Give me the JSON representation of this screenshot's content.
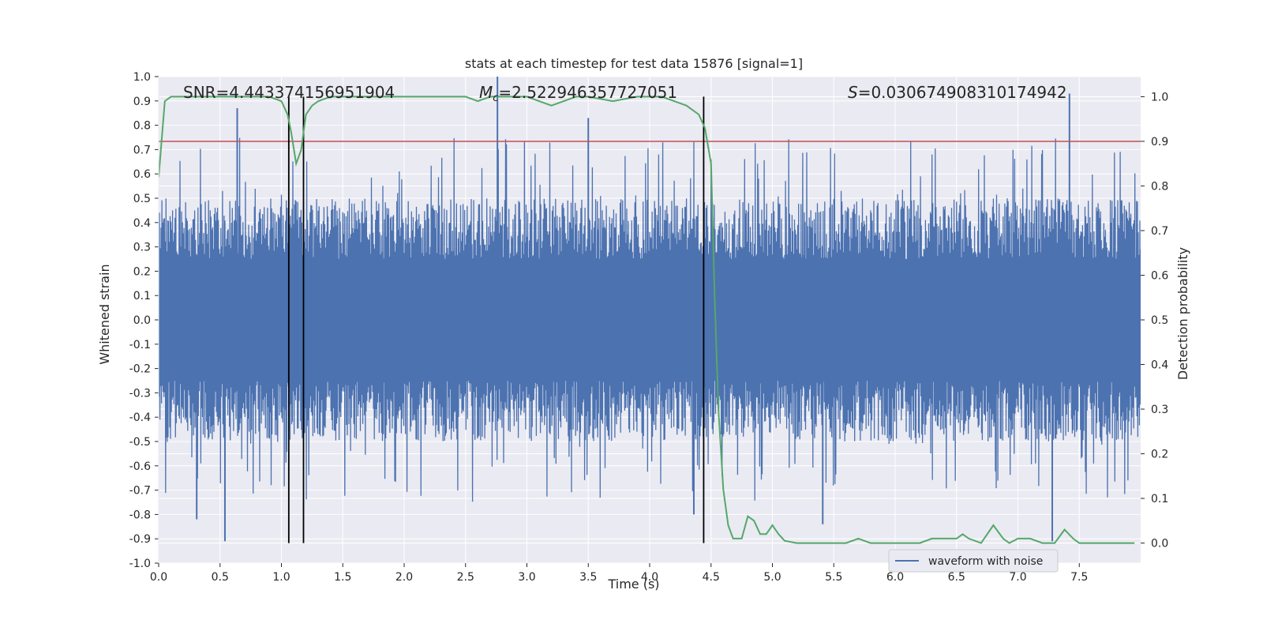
{
  "chart_data": {
    "type": "line",
    "title": "stats at each timestep for test data 15876 [signal=1]",
    "xlabel": "Time (s)",
    "ylabel": "Whitened strain",
    "ylabel_right": "Detection probability",
    "xlim": [
      0.0,
      8.0
    ],
    "ylim": [
      -1.0,
      1.0
    ],
    "ylim_right": [
      -0.045,
      1.045
    ],
    "x_ticks": [
      "0.0",
      "0.5",
      "1.0",
      "1.5",
      "2.0",
      "2.5",
      "3.0",
      "3.5",
      "4.0",
      "4.5",
      "5.0",
      "5.5",
      "6.0",
      "6.5",
      "7.0",
      "7.5"
    ],
    "y_ticks": [
      "1.0",
      "0.9",
      "0.8",
      "0.7",
      "0.6",
      "0.5",
      "0.4",
      "0.3",
      "0.2",
      "0.1",
      "0.0",
      "-0.1",
      "-0.2",
      "-0.3",
      "-0.4",
      "-0.5",
      "-0.6",
      "-0.7",
      "-0.8",
      "-0.9",
      "-1.0"
    ],
    "y_right_ticks": [
      "1.0",
      "0.9",
      "0.8",
      "0.7",
      "0.6",
      "0.5",
      "0.4",
      "0.3",
      "0.2",
      "0.1",
      "0.0"
    ],
    "grid": true,
    "annotations": {
      "snr": "SNR=4.443374156951904",
      "mc_symbol": "M",
      "mc_sub": "c",
      "mc_value": "=2.522946357727051",
      "s_symbol": "S",
      "s_value": "=0.030674908310174942"
    },
    "legend": {
      "placement": "lower-right",
      "entries": [
        "waveform with noise"
      ]
    },
    "colors": {
      "waveform": "#4c72b0",
      "probability": "#55a868",
      "threshold": "#c44e52",
      "vlines": "#000000",
      "background": "#eaeaf2",
      "grid": "#ffffff"
    },
    "threshold_probability": 0.9,
    "vertical_lines_x": [
      1.06,
      1.18,
      4.44
    ],
    "series": [
      {
        "name": "waveform with noise",
        "note_values": "dense whitened strain trace; envelope approx ±0.3–0.6 with spikes up to ±1.0",
        "spikes": [
          {
            "x": 0.64,
            "y": 0.87
          },
          {
            "x": 0.54,
            "y": -0.91
          },
          {
            "x": 2.76,
            "y": 1.0
          },
          {
            "x": 3.5,
            "y": 0.83
          },
          {
            "x": 7.42,
            "y": 0.93
          },
          {
            "x": 7.28,
            "y": -0.91
          },
          {
            "x": 5.41,
            "y": -0.84
          },
          {
            "x": 4.36,
            "y": -0.8
          },
          {
            "x": 0.31,
            "y": -0.82
          }
        ]
      },
      {
        "name": "",
        "x": [
          0.0,
          0.05,
          0.1,
          0.2,
          0.3,
          0.5,
          0.7,
          0.9,
          1.0,
          1.05,
          1.08,
          1.12,
          1.16,
          1.2,
          1.25,
          1.3,
          1.4,
          1.5,
          1.7,
          2.0,
          2.3,
          2.5,
          2.6,
          2.7,
          2.8,
          3.0,
          3.1,
          3.2,
          3.3,
          3.4,
          3.5,
          3.7,
          3.9,
          4.1,
          4.2,
          4.3,
          4.4,
          4.45,
          4.5,
          4.53,
          4.56,
          4.6,
          4.64,
          4.68,
          4.75,
          4.8,
          4.85,
          4.9,
          4.95,
          5.0,
          5.05,
          5.1,
          5.2,
          5.4,
          5.6,
          5.7,
          5.8,
          6.0,
          6.2,
          6.3,
          6.35,
          6.4,
          6.5,
          6.55,
          6.6,
          6.7,
          6.8,
          6.88,
          6.93,
          7.0,
          7.1,
          7.2,
          7.3,
          7.38,
          7.45,
          7.5,
          7.6,
          7.7,
          7.8,
          7.95
        ],
        "values": [
          0.82,
          0.99,
          1.0,
          1.0,
          1.0,
          1.0,
          1.0,
          1.0,
          0.99,
          0.96,
          0.92,
          0.85,
          0.88,
          0.96,
          0.98,
          0.99,
          1.0,
          1.0,
          1.0,
          1.0,
          1.0,
          1.0,
          0.99,
          1.0,
          1.0,
          1.0,
          0.99,
          0.98,
          0.99,
          1.0,
          1.0,
          0.99,
          1.0,
          1.0,
          0.99,
          0.98,
          0.96,
          0.93,
          0.85,
          0.55,
          0.3,
          0.12,
          0.04,
          0.01,
          0.01,
          0.06,
          0.05,
          0.02,
          0.02,
          0.04,
          0.02,
          0.005,
          0.0,
          0.0,
          0.0,
          0.01,
          0.0,
          0.0,
          0.0,
          0.01,
          0.01,
          0.01,
          0.01,
          0.02,
          0.01,
          0.0,
          0.04,
          0.01,
          0.0,
          0.01,
          0.01,
          0.0,
          0.0,
          0.03,
          0.01,
          0.0,
          0.0,
          0.0,
          0.0,
          0.0
        ]
      }
    ]
  }
}
